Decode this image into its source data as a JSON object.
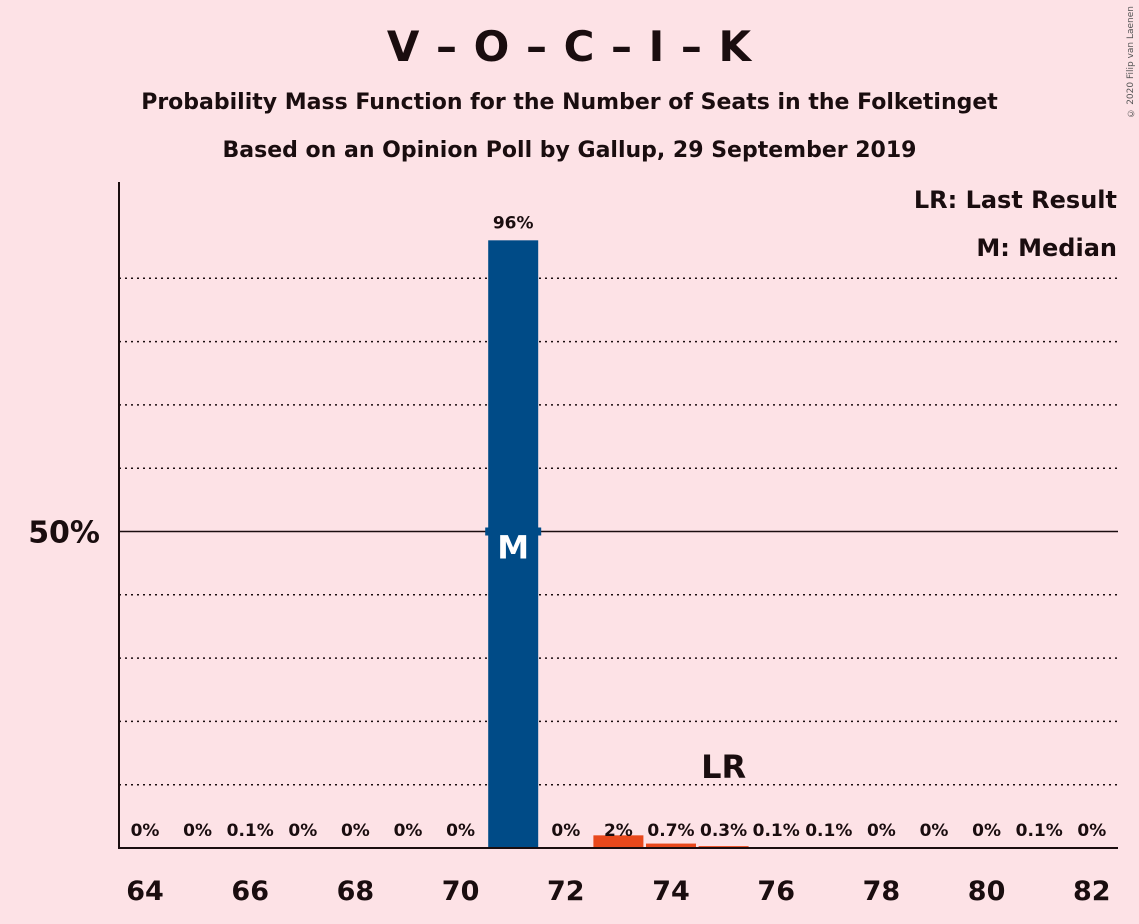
{
  "title": "V – O – C – I – K",
  "subtitle": "Probability Mass Function for the Number of Seats in the Folketinget",
  "subtitle2": "Based on an Opinion Poll by Gallup, 29 September 2019",
  "copyright": "© 2020 Filip van Laenen",
  "legend": {
    "last_result": "LR: Last Result",
    "median": "M: Median"
  },
  "colors": {
    "background": "#fde2e6",
    "median_bar": "#004b87",
    "other_bar": "#e8481c"
  },
  "chart_data": {
    "type": "bar",
    "x": [
      64,
      65,
      66,
      67,
      68,
      69,
      70,
      71,
      72,
      73,
      74,
      75,
      76,
      77,
      78,
      79,
      80,
      81,
      82
    ],
    "values": [
      0,
      0,
      0.1,
      0,
      0,
      0,
      0,
      96,
      0,
      2,
      0.7,
      0.3,
      0.1,
      0.1,
      0,
      0,
      0,
      0.1,
      0
    ],
    "labels": [
      "0%",
      "0%",
      "0.1%",
      "0%",
      "0%",
      "0%",
      "0%",
      "96%",
      "0%",
      "2%",
      "0.7%",
      "0.3%",
      "0.1%",
      "0.1%",
      "0%",
      "0%",
      "0%",
      "0.1%",
      "0%"
    ],
    "x_ticks": [
      64,
      66,
      68,
      70,
      72,
      74,
      76,
      78,
      80,
      82
    ],
    "y_tick_label": "50%",
    "y_tick_value": 50,
    "ylim": [
      0,
      105
    ],
    "gridlines": [
      10,
      20,
      30,
      40,
      60,
      70,
      80,
      90
    ],
    "median": 71,
    "median_marker": "M",
    "last_result": 75,
    "last_result_marker": "LR"
  }
}
